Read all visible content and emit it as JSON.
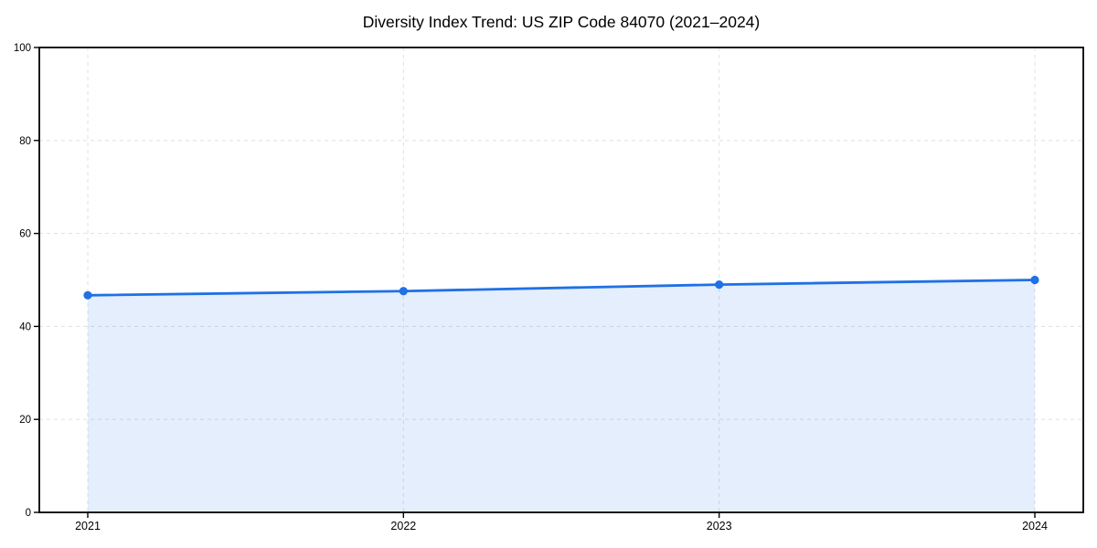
{
  "chart_data": {
    "type": "area",
    "title": "Diversity Index Trend: US ZIP Code 84070 (2021–2024)",
    "categories": [
      "2021",
      "2022",
      "2023",
      "2024"
    ],
    "series": [
      {
        "name": "Diversity Index",
        "values": [
          46.7,
          47.6,
          49.0,
          50.0
        ]
      }
    ],
    "xlabel": "",
    "ylabel": "",
    "ylim": [
      0,
      100
    ],
    "yticks": [
      0,
      20,
      40,
      60,
      80,
      100
    ],
    "grid": true,
    "grid_style": "dashed",
    "legend_position": "none",
    "colors": {
      "line": "#2070e6",
      "marker": "#2070e6",
      "area_fill": "rgba(32, 112, 230, 0.12)",
      "gridline": "#e3e3e3",
      "axis_frame": "#000000",
      "tick_text": "#000000",
      "title_text": "#000000",
      "background": "#ffffff"
    }
  }
}
